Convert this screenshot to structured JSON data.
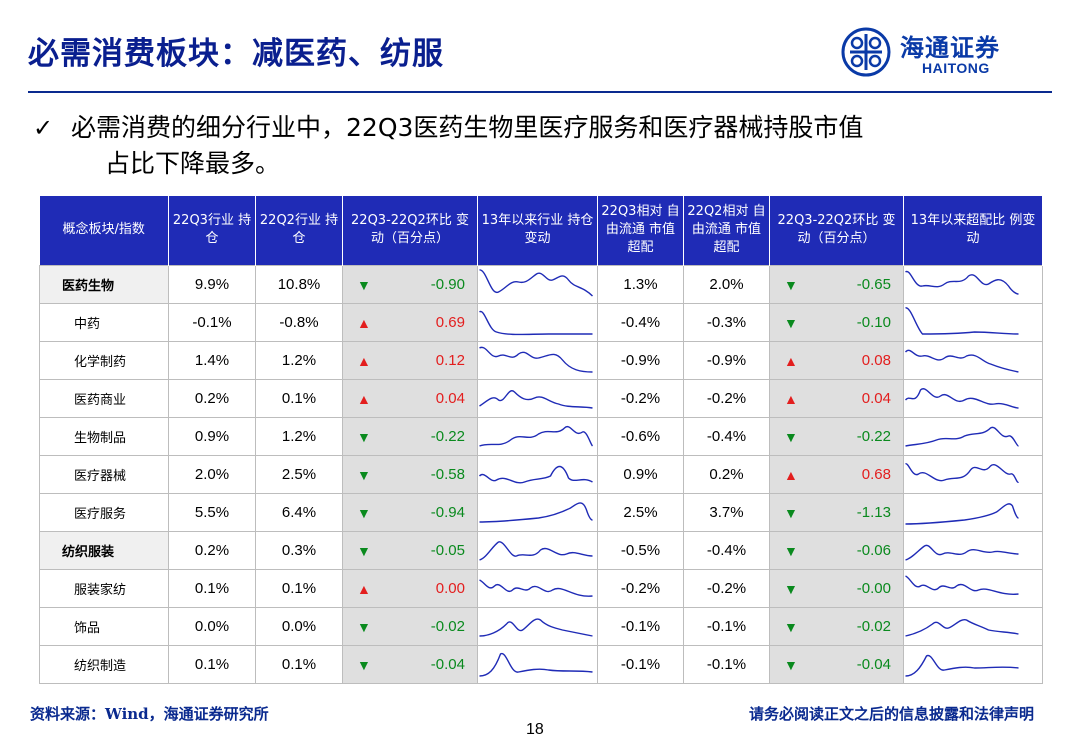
{
  "title": "必需消费板块：减医药、纺服",
  "logo": {
    "cn": "海通证券",
    "en": "HAITONG"
  },
  "bullet": {
    "check": "✓",
    "line1": "必需消费的细分行业中，22Q3医药生物里医疗服务和医疗器械持股市值",
    "line2": "占比下降最多。"
  },
  "table": {
    "headers": [
      "概念板块/指数",
      "22Q3行业 持仓",
      "22Q2行业 持仓",
      "22Q3-22Q2环比 变动（百分点）",
      "13年以来行业 持仓变动",
      "22Q3相对 自由流通 市值超配",
      "22Q2相对 自由流通 市值超配",
      "22Q3-22Q2环比 变动（百分点）",
      "13年以来超配比 例变动"
    ],
    "rows": [
      {
        "name": "医药生物",
        "q3": "9.9%",
        "q2": "10.8%",
        "chg_dir": "down",
        "chg": "-0.90",
        "oq3": "1.3%",
        "oq2": "2.0%",
        "ochg_dir": "down",
        "ochg": "-0.65"
      },
      {
        "name": "中药",
        "q3": "-0.1%",
        "q2": "-0.8%",
        "chg_dir": "up",
        "chg": "0.69",
        "oq3": "-0.4%",
        "oq2": "-0.3%",
        "ochg_dir": "down",
        "ochg": "-0.10"
      },
      {
        "name": "化学制药",
        "q3": "1.4%",
        "q2": "1.2%",
        "chg_dir": "up",
        "chg": "0.12",
        "oq3": "-0.9%",
        "oq2": "-0.9%",
        "ochg_dir": "up",
        "ochg": "0.08"
      },
      {
        "name": "医药商业",
        "q3": "0.2%",
        "q2": "0.1%",
        "chg_dir": "up",
        "chg": "0.04",
        "oq3": "-0.2%",
        "oq2": "-0.2%",
        "ochg_dir": "up",
        "ochg": "0.04"
      },
      {
        "name": "生物制品",
        "q3": "0.9%",
        "q2": "1.2%",
        "chg_dir": "down",
        "chg": "-0.22",
        "oq3": "-0.6%",
        "oq2": "-0.4%",
        "ochg_dir": "down",
        "ochg": "-0.22"
      },
      {
        "name": "医疗器械",
        "q3": "2.0%",
        "q2": "2.5%",
        "chg_dir": "down",
        "chg": "-0.58",
        "oq3": "0.9%",
        "oq2": "0.2%",
        "ochg_dir": "up",
        "ochg": "0.68"
      },
      {
        "name": "医疗服务",
        "q3": "5.5%",
        "q2": "6.4%",
        "chg_dir": "down",
        "chg": "-0.94",
        "oq3": "2.5%",
        "oq2": "3.7%",
        "ochg_dir": "down",
        "ochg": "-1.13"
      },
      {
        "name": "纺织服装",
        "q3": "0.2%",
        "q2": "0.3%",
        "chg_dir": "down",
        "chg": "-0.05",
        "oq3": "-0.5%",
        "oq2": "-0.4%",
        "ochg_dir": "down",
        "ochg": "-0.06"
      },
      {
        "name": "服装家纺",
        "q3": "0.1%",
        "q2": "0.1%",
        "chg_dir": "up",
        "chg": "0.00",
        "oq3": "-0.2%",
        "oq2": "-0.2%",
        "ochg_dir": "down",
        "ochg": "-0.00"
      },
      {
        "name": "饰品",
        "q3": "0.0%",
        "q2": "0.0%",
        "chg_dir": "down",
        "chg": "-0.02",
        "oq3": "-0.1%",
        "oq2": "-0.1%",
        "ochg_dir": "down",
        "ochg": "-0.02"
      },
      {
        "name": "纺织制造",
        "q3": "0.1%",
        "q2": "0.1%",
        "chg_dir": "down",
        "chg": "-0.04",
        "oq3": "-0.1%",
        "oq2": "-0.1%",
        "ochg_dir": "down",
        "ochg": "-0.04"
      }
    ]
  },
  "arrows": {
    "up": "▲",
    "down": "▼"
  },
  "colors": {
    "up": "#e31e1e",
    "down": "#0a8a1e",
    "header_bg": "#1f2bb6",
    "title": "#0a1f8f"
  },
  "footer": {
    "source": "资料来源：Wind，海通证券研究所",
    "disclaimer": "请务必阅读正文之后的信息披露和法律声明",
    "page": "18"
  }
}
